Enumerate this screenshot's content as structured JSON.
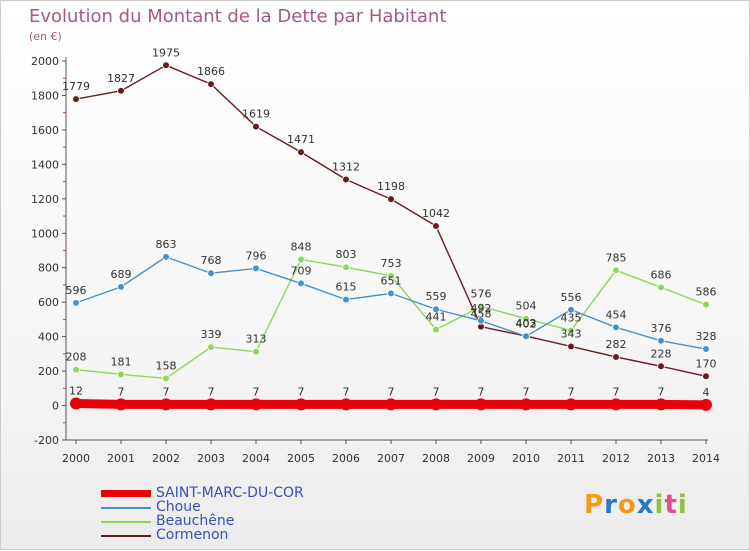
{
  "title": "Evolution du Montant de la Dette par Habitant",
  "unit": "(en €)",
  "logo": {
    "text": "Proxiti",
    "colors": [
      "#f39a1c",
      "#2a77c9",
      "#f39a1c",
      "#2a77c9",
      "#8cc63f",
      "#e84a9b",
      "#8cc63f"
    ]
  },
  "chart_data": {
    "type": "line",
    "title": "Evolution du Montant de la Dette par Habitant",
    "ylabel": "(en €)",
    "xlabel": "",
    "x": [
      "2000",
      "2001",
      "2002",
      "2003",
      "2004",
      "2005",
      "2006",
      "2007",
      "2008",
      "2009",
      "2010",
      "2011",
      "2012",
      "2013",
      "2014"
    ],
    "ylim": [
      -200,
      2000
    ],
    "yticks": [
      -200,
      0,
      200,
      400,
      600,
      800,
      1000,
      1200,
      1400,
      1600,
      1800,
      2000
    ],
    "grid": false,
    "legend": "bottom-left",
    "series": [
      {
        "name": "SAINT-MARC-DU-COR",
        "color": "#e8000b",
        "values": [
          12,
          7,
          7,
          7,
          7,
          7,
          7,
          7,
          7,
          7,
          7,
          7,
          7,
          7,
          4
        ],
        "labels": [
          "12",
          "7",
          "7",
          "7",
          "7",
          "7",
          "7",
          "7",
          "7",
          "7",
          "7",
          "7",
          "7",
          "7",
          "4"
        ]
      },
      {
        "name": "Choue",
        "color": "#4a90c8",
        "values": [
          596,
          689,
          863,
          768,
          796,
          709,
          615,
          651,
          559,
          492,
          402,
          556,
          454,
          376,
          328
        ],
        "labels": [
          "596",
          "689",
          "863",
          "768",
          "796",
          "709",
          "615",
          "651",
          "559",
          "492",
          "402",
          "556",
          "454",
          "376",
          "328"
        ]
      },
      {
        "name": "Beauchêne",
        "color": "#8fd65a",
        "values": [
          208,
          181,
          158,
          339,
          313,
          848,
          803,
          753,
          441,
          576,
          504,
          435,
          785,
          686,
          586
        ],
        "labels": [
          "208",
          "181",
          "158",
          "339",
          "313",
          "848",
          "803",
          "753",
          "441",
          "576",
          "504",
          "435",
          "785",
          "686",
          "586"
        ]
      },
      {
        "name": "Cormenon",
        "color": "#6b1a1f",
        "values": [
          1779,
          1827,
          1975,
          1866,
          1619,
          1471,
          1312,
          1198,
          1042,
          458,
          403,
          343,
          282,
          228,
          170
        ],
        "labels": [
          "1779",
          "1827",
          "1975",
          "1866",
          "1619",
          "1471",
          "1312",
          "1198",
          "1042",
          "458",
          "403",
          "343",
          "282",
          "228",
          "170"
        ]
      }
    ]
  }
}
